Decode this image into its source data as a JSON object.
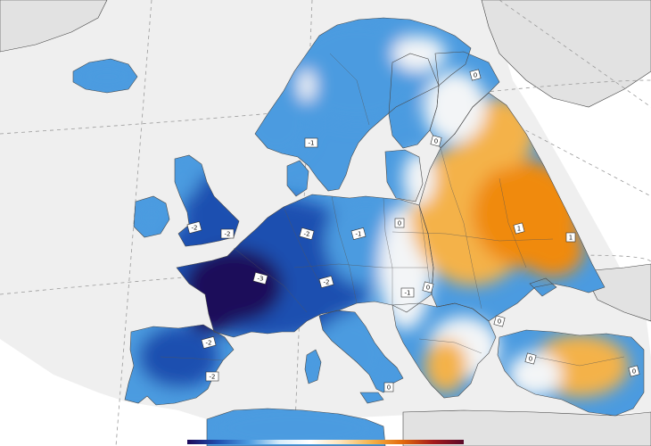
{
  "map": {
    "colors": {
      "land_no_data": "#e6e6e6",
      "sea": "#ffffff",
      "anomaly_-3": "#1e0a5a",
      "anomaly_-2": "#1f4fb0",
      "anomaly_-1": "#4b9be0",
      "anomaly_0": "#f3f5f7",
      "anomaly_+1": "#f4b24a",
      "anomaly_+2": "#f08a10"
    },
    "contour_labels": [
      {
        "id": "finland-0",
        "text": "0"
      },
      {
        "id": "sweden-1",
        "text": "-1"
      },
      {
        "id": "russia-north-0",
        "text": "0"
      },
      {
        "id": "uk-east-2",
        "text": "-2"
      },
      {
        "id": "uk-south-2",
        "text": "-2"
      },
      {
        "id": "germany-2",
        "text": "-2"
      },
      {
        "id": "poland-1",
        "text": "-1"
      },
      {
        "id": "belarus-0",
        "text": "0"
      },
      {
        "id": "ukraine-north-0",
        "text": "0"
      },
      {
        "id": "russia-central-1",
        "text": "1"
      },
      {
        "id": "russia-east-1",
        "text": "1"
      },
      {
        "id": "france-3",
        "text": "-3"
      },
      {
        "id": "alps-2",
        "text": "-2"
      },
      {
        "id": "hungary-1",
        "text": "-1"
      },
      {
        "id": "romania-0",
        "text": "0"
      },
      {
        "id": "spain-2",
        "text": "-2"
      },
      {
        "id": "iberia-south-2",
        "text": "-2"
      },
      {
        "id": "turkey-west-0",
        "text": "0"
      },
      {
        "id": "turkey-east-0",
        "text": "0"
      },
      {
        "id": "greece-0",
        "text": "0"
      }
    ],
    "colorbar": {
      "stops": [
        "#1e0a5a",
        "#1f4fb0",
        "#4b9be0",
        "#d7ecf9",
        "#ffffff",
        "#fde3b8",
        "#f4b24a",
        "#e36b0c",
        "#a51b1b",
        "#5a0a2a"
      ]
    }
  }
}
